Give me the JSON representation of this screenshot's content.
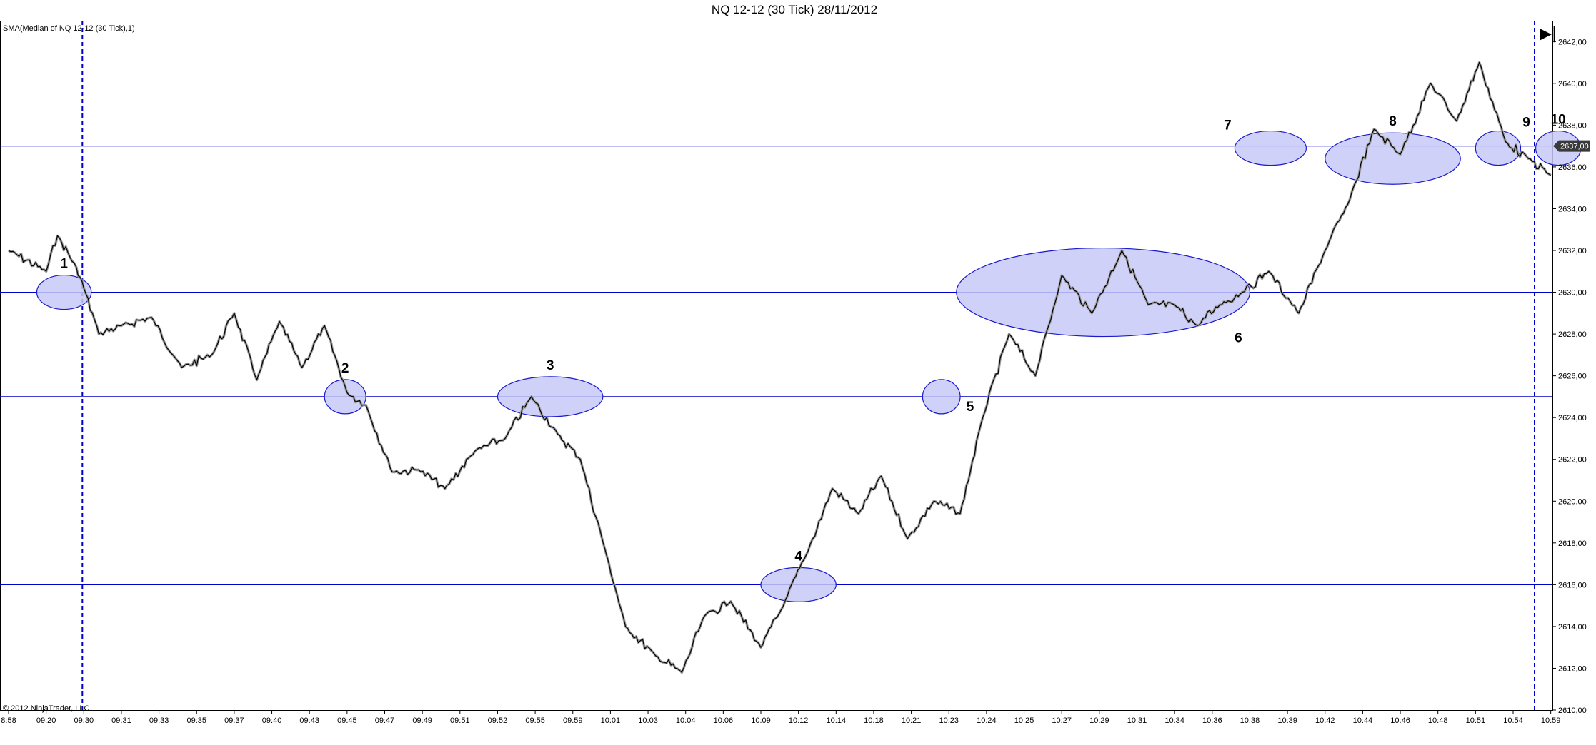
{
  "window": {
    "title": "NQ 12-12 (30 Tick)  28/11/2012",
    "indicator_label": "SMA(Median of NQ 12-12 (30 Tick),1)",
    "copyright": "© 2012 NinjaTrader, LLC",
    "scroll_end_glyph": "▶|"
  },
  "colors": {
    "price_line": "#000000",
    "price_shadow": "#9a9a9a",
    "level_line": "#0000cc",
    "zone_fill": "#c7c9f7",
    "zone_stroke": "#1a1acc",
    "price_badge": "#3a3a3a"
  },
  "chart_data": {
    "type": "line",
    "title": "NQ 12-12 (30 Tick)  28/11/2012",
    "xlabel": "",
    "ylabel": "",
    "ylim": [
      2610,
      2643
    ],
    "y_ticks": [
      "2642,00",
      "2640,00",
      "2638,00",
      "2636,00",
      "2634,00",
      "2632,00",
      "2630,00",
      "2628,00",
      "2626,00",
      "2624,00",
      "2622,00",
      "2620,00",
      "2618,00",
      "2616,00",
      "2614,00",
      "2612,00",
      "2610,00"
    ],
    "x_ticks": [
      "8:58",
      "09:20",
      "09:30",
      "09:31",
      "09:33",
      "09:35",
      "09:37",
      "09:40",
      "09:43",
      "09:45",
      "09:47",
      "09:49",
      "09:51",
      "09:52",
      "09:55",
      "09:59",
      "10:01",
      "10:03",
      "10:04",
      "10:06",
      "10:09",
      "10:12",
      "10:14",
      "10:18",
      "10:21",
      "10:23",
      "10:24",
      "10:25",
      "10:27",
      "10:29",
      "10:31",
      "10:34",
      "10:36",
      "10:38",
      "10:39",
      "10:42",
      "10:44",
      "10:46",
      "10:48",
      "10:51",
      "10:54",
      "10:59"
    ],
    "current_price": "2637,00",
    "horizontal_levels": [
      2637,
      2630,
      2625,
      2616
    ],
    "series": [
      {
        "x_index": [
          0,
          1,
          1.3,
          1.8,
          2.0,
          2.4,
          3,
          3.8,
          4.6,
          5.4,
          6.0,
          6.6,
          7.2,
          7.8,
          8.4,
          9.0,
          9.5,
          10.2,
          10.9,
          11.6,
          12.4,
          13.2,
          13.9,
          14.6,
          15.2,
          15.9,
          16.4,
          17.2,
          17.9,
          18.5,
          19.2,
          20.0,
          20.6,
          21.2,
          21.9,
          22.6,
          23.2,
          23.9,
          24.6,
          25.3,
          25.9,
          26.6,
          27.3,
          28.0,
          28.8,
          29.6,
          30.3,
          31.0,
          31.6,
          32.2,
          32.8,
          33.5,
          34.3,
          35.0,
          35.6,
          36.3,
          37.0,
          37.8,
          38.5,
          39.1,
          39.8,
          40.4,
          41.0
        ],
        "values": [
          2632.0,
          2631.0,
          2632.7,
          2631.2,
          2630.2,
          2628.0,
          2628.4,
          2628.8,
          2626.4,
          2627.0,
          2629.0,
          2625.8,
          2628.6,
          2626.4,
          2628.4,
          2625.2,
          2624.6,
          2621.4,
          2621.5,
          2620.6,
          2622.4,
          2623.0,
          2625.0,
          2623.2,
          2622.0,
          2617.4,
          2614.0,
          2612.6,
          2611.8,
          2614.5,
          2615.2,
          2613.0,
          2615.0,
          2617.4,
          2620.6,
          2619.4,
          2621.2,
          2618.2,
          2620.0,
          2619.4,
          2624.0,
          2628.0,
          2626.0,
          2630.8,
          2629.0,
          2632.0,
          2629.4,
          2629.4,
          2628.4,
          2629.4,
          2630.0,
          2631.0,
          2629.0,
          2632.0,
          2634.2,
          2637.8,
          2636.6,
          2640.0,
          2638.2,
          2641.0,
          2637.2,
          2636.4,
          2635.6
        ]
      }
    ]
  },
  "zones": [
    {
      "label": "1",
      "price": 2630.0,
      "x_from": 0.75,
      "x_to": 2.2
    },
    {
      "label": "2",
      "price": 2625.0,
      "x_from": 8.4,
      "x_to": 9.5
    },
    {
      "label": "3",
      "price": 2625.0,
      "x_from": 13.0,
      "x_to": 15.8
    },
    {
      "label": "4",
      "price": 2616.0,
      "x_from": 20.0,
      "x_to": 22.0
    },
    {
      "label": "5",
      "price": 2625.0,
      "x_from": 24.3,
      "x_to": 25.3
    },
    {
      "label": "6",
      "price": 2630.0,
      "x_from": 25.2,
      "x_to": 33.0
    },
    {
      "label": "7",
      "price": 2636.9,
      "x_from": 32.6,
      "x_to": 34.5
    },
    {
      "label": "8",
      "price": 2636.4,
      "x_from": 35.0,
      "x_to": 38.6
    },
    {
      "label": "9",
      "price": 2636.9,
      "x_from": 39.0,
      "x_to": 40.2
    },
    {
      "label": "10",
      "price": 2636.9,
      "x_from": 40.6,
      "x_to": 41.8
    }
  ],
  "session_markers": [
    "09:30",
    "10:59"
  ]
}
